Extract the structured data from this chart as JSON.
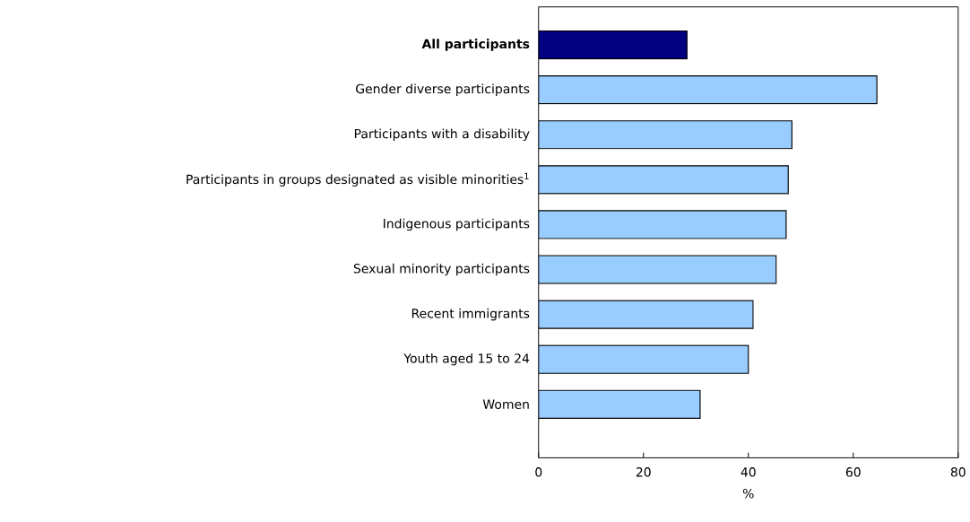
{
  "chart_data": {
    "type": "bar",
    "orientation": "horizontal",
    "xlabel": "%",
    "categories": [
      "**All participants**",
      "Gender diverse participants",
      "Participants with a disability",
      "Participants in groups designated as visible minorities$^{1}$",
      "Indigenous participants",
      "Sexual minority participants",
      "Recent immigrants",
      "Youth aged 15 to 24",
      "Women"
    ],
    "values": [
      28.3,
      64.5,
      48.3,
      47.6,
      47.2,
      45.3,
      40.9,
      40.0,
      30.8
    ],
    "colors": [
      "#000080",
      "#99ccff",
      "#99ccff",
      "#99ccff",
      "#99ccff",
      "#99ccff",
      "#99ccff",
      "#99ccff",
      "#99ccff"
    ],
    "xlim": [
      0,
      80
    ],
    "xticks": [
      0,
      20,
      40,
      60,
      80
    ],
    "grid": false
  }
}
